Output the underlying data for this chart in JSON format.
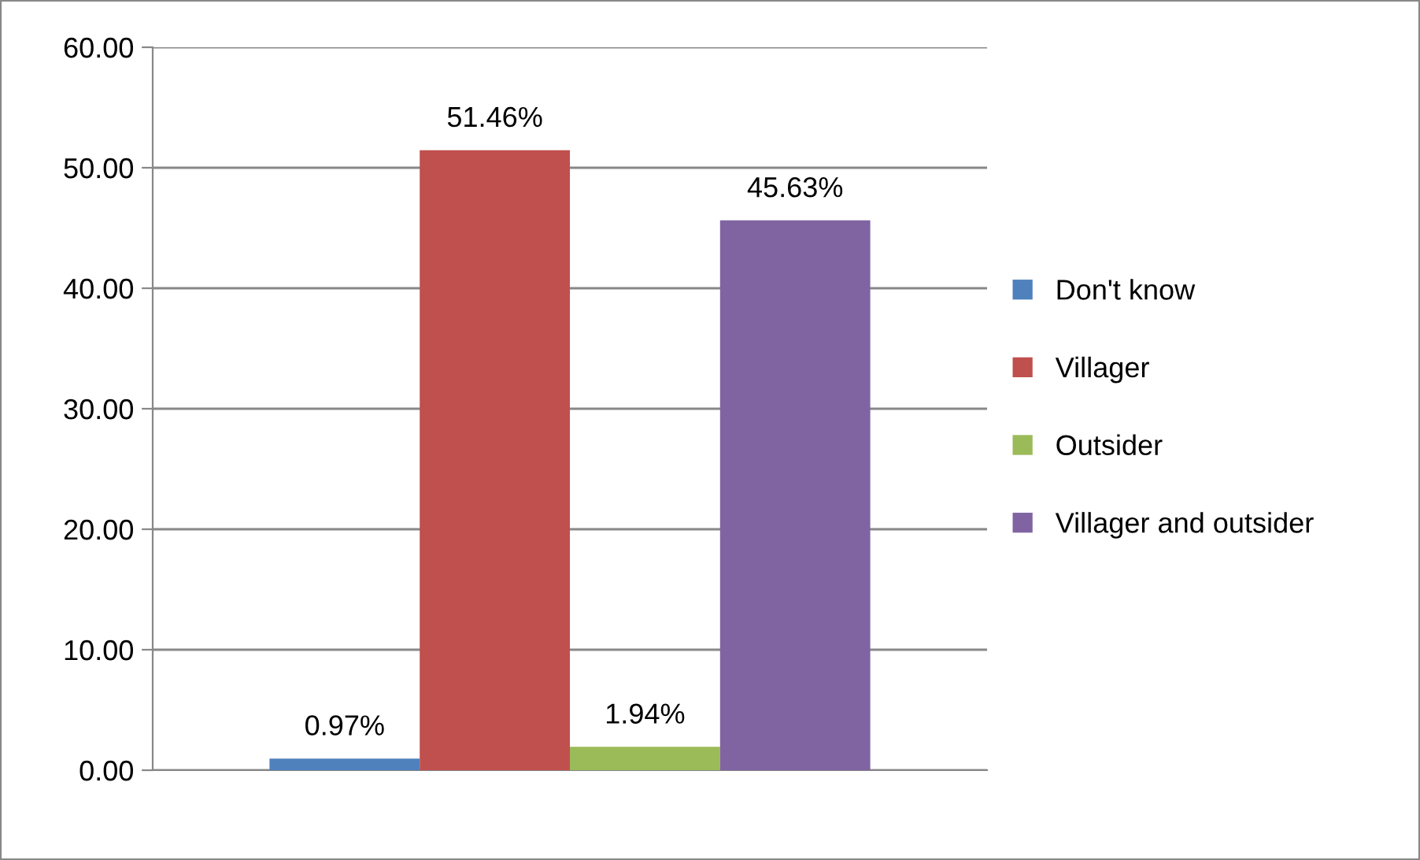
{
  "chart_data": {
    "type": "bar",
    "categories": [
      null
    ],
    "series": [
      {
        "name": "Don't know",
        "color": "#4f81bd",
        "values": [
          0.97
        ],
        "value_labels": [
          "0.97%"
        ]
      },
      {
        "name": "Villager",
        "color": "#c0504d",
        "values": [
          51.46
        ],
        "value_labels": [
          "51.46%"
        ]
      },
      {
        "name": "Outsider",
        "color": "#9bbb59",
        "values": [
          1.94
        ],
        "value_labels": [
          "1.94%"
        ]
      },
      {
        "name": "Villager and outsider",
        "color": "#8064a2",
        "values": [
          45.63
        ],
        "value_labels": [
          "45.63%"
        ]
      }
    ],
    "ylim": [
      0,
      60
    ],
    "yticks": [
      {
        "value": 0,
        "label": "0.00"
      },
      {
        "value": 10,
        "label": "10.00"
      },
      {
        "value": 20,
        "label": "20.00"
      },
      {
        "value": 30,
        "label": "30.00"
      },
      {
        "value": 40,
        "label": "40.00"
      },
      {
        "value": 50,
        "label": "50.00"
      },
      {
        "value": 60,
        "label": "60.00"
      }
    ],
    "grid": "y",
    "legend": "right"
  }
}
